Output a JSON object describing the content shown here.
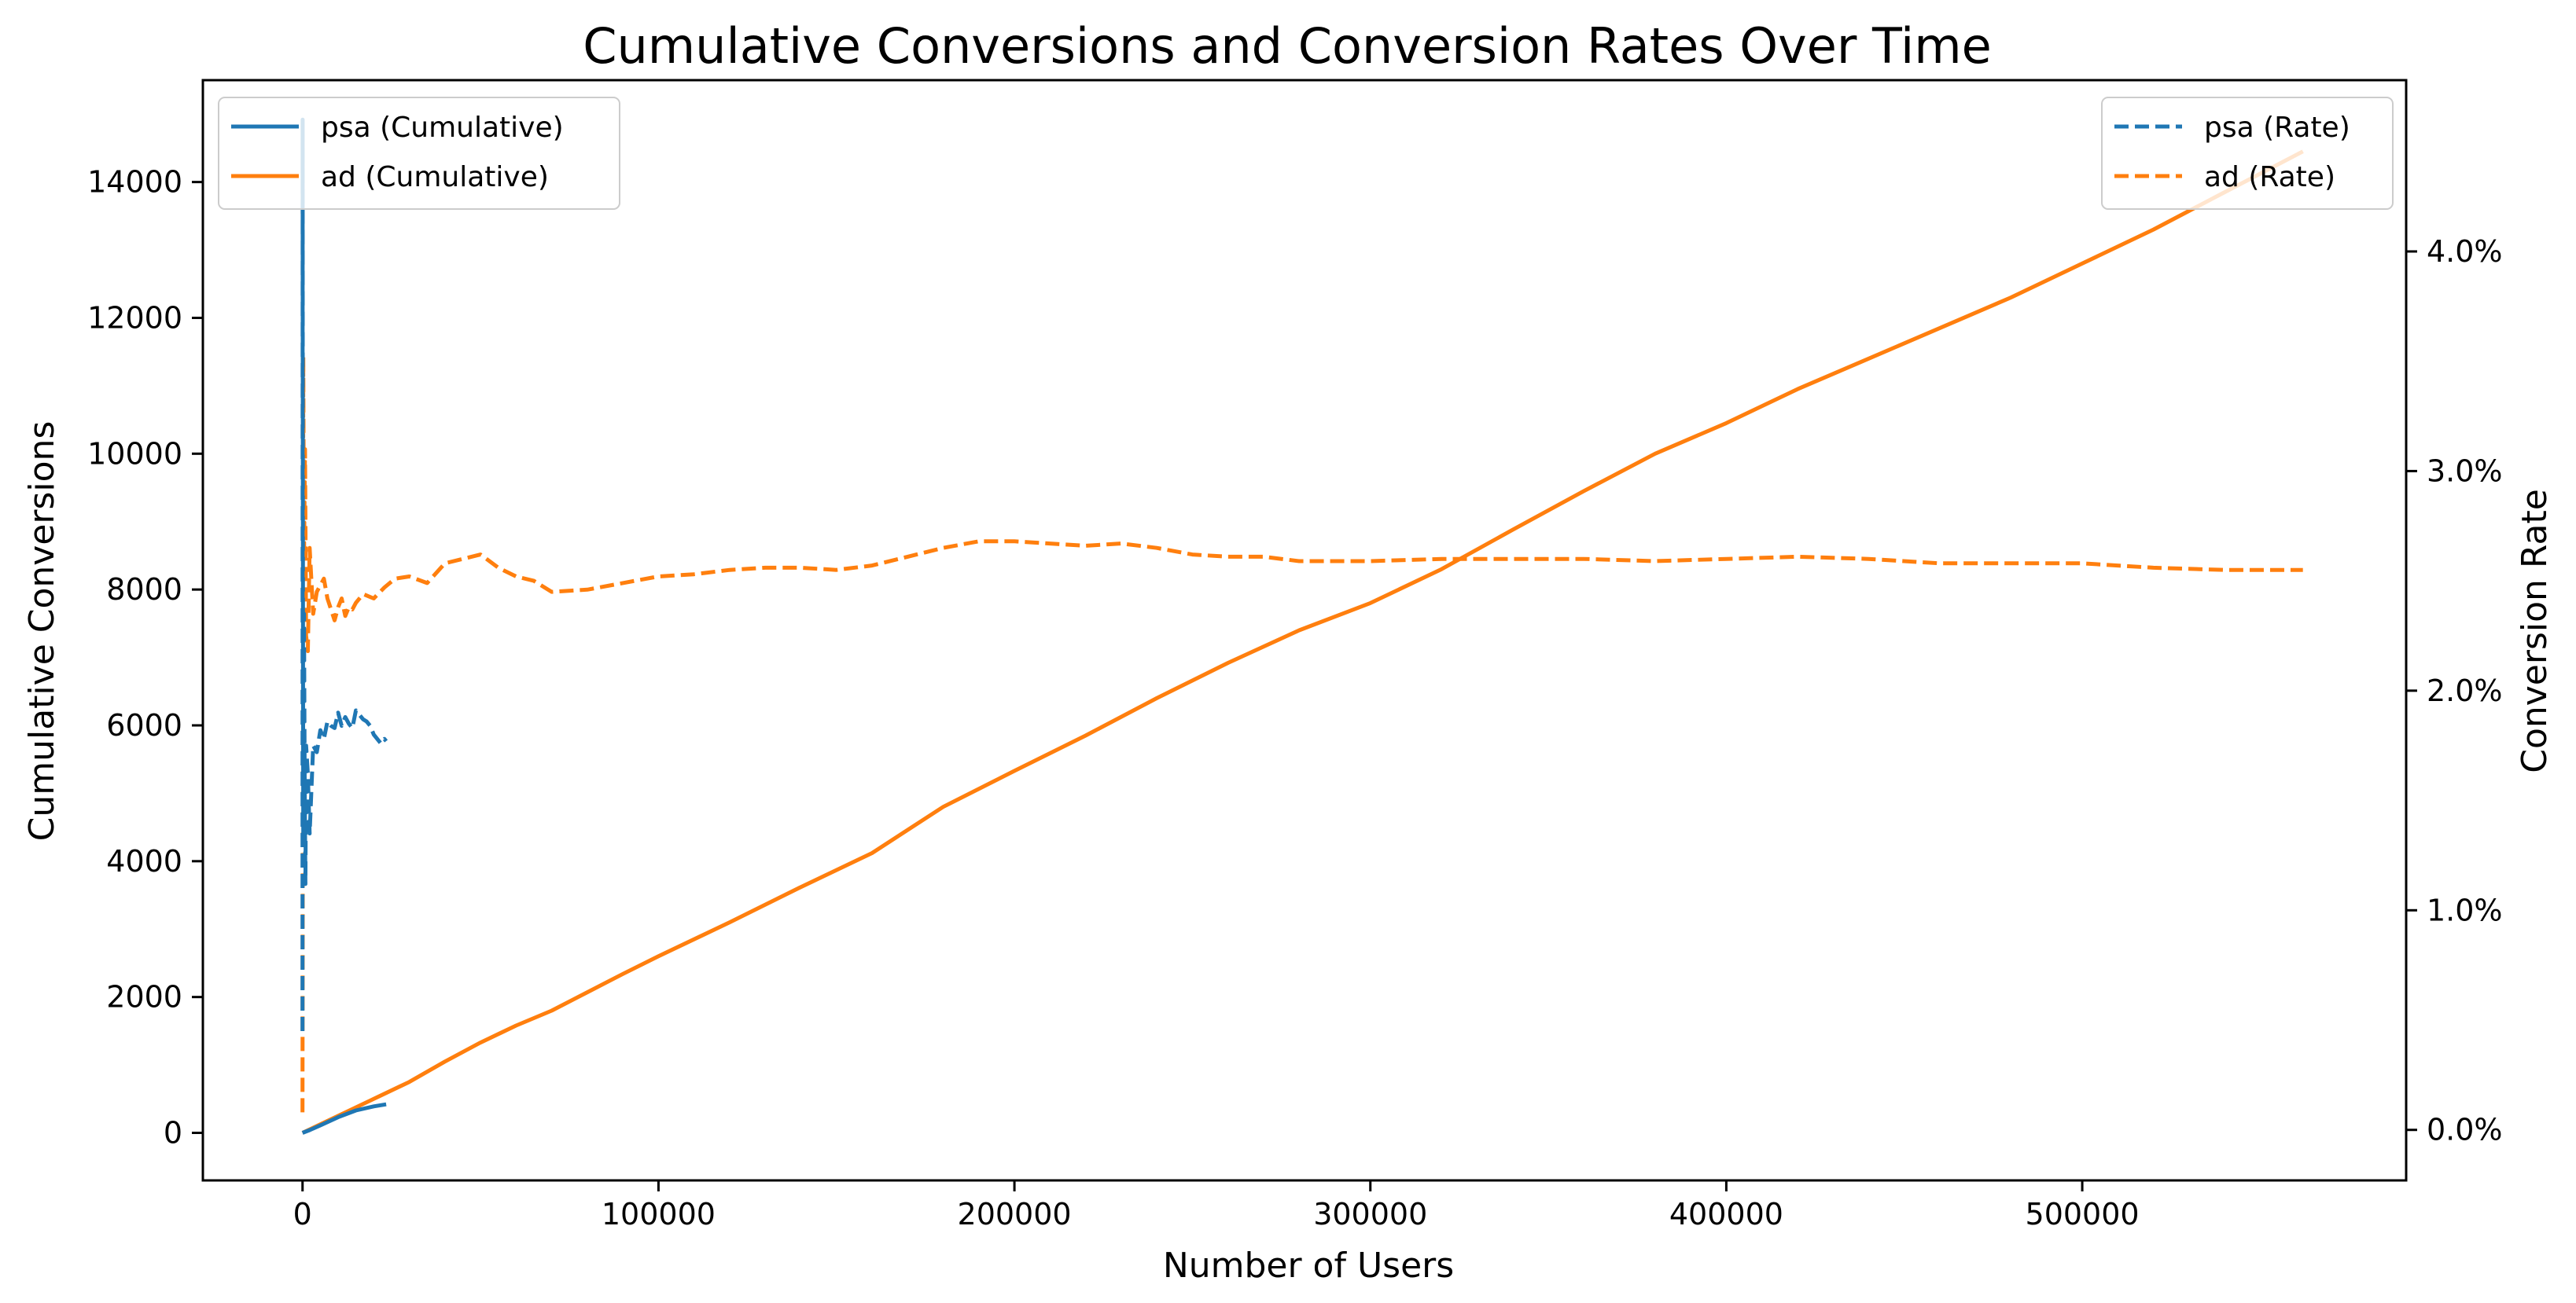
{
  "chart_data": {
    "type": "line",
    "title": "Cumulative Conversions and Conversion Rates Over Time",
    "xlabel": "Number of Users",
    "ylabel_left": "Cumulative Conversions",
    "ylabel_right": "Conversion Rate",
    "xlim": [
      -28000,
      591000
    ],
    "ylim_left": [
      -700,
      15500
    ],
    "ylim_right": [
      -0.0023,
      0.0478
    ],
    "x_ticks": [
      0,
      100000,
      200000,
      300000,
      400000,
      500000
    ],
    "x_tick_labels": [
      "0",
      "100000",
      "200000",
      "300000",
      "400000",
      "500000"
    ],
    "y_left_ticks": [
      0,
      2000,
      4000,
      6000,
      8000,
      10000,
      12000,
      14000
    ],
    "y_left_tick_labels": [
      "0",
      "2000",
      "4000",
      "6000",
      "8000",
      "10000",
      "12000",
      "14000"
    ],
    "y_right_ticks": [
      0,
      0.01,
      0.02,
      0.03,
      0.04
    ],
    "y_right_tick_labels": [
      "0.0%",
      "1.0%",
      "2.0%",
      "3.0%",
      "4.0%"
    ],
    "grid": false,
    "legend_left": {
      "placement": "top-left",
      "entries": [
        "psa (Cumulative)",
        "ad (Cumulative)"
      ]
    },
    "legend_right": {
      "placement": "top-right",
      "entries": [
        "psa (Rate)",
        "ad (Rate)"
      ]
    },
    "colors": {
      "psa": "#1f77b4",
      "ad": "#ff7f0e"
    },
    "series": [
      {
        "name": "psa (Cumulative)",
        "axis": "left",
        "style": "solid",
        "x": [
          0,
          2000,
          5000,
          10000,
          15000,
          20000,
          23500
        ],
        "y": [
          0,
          40,
          110,
          230,
          330,
          390,
          420
        ]
      },
      {
        "name": "ad (Cumulative)",
        "axis": "left",
        "style": "solid",
        "x": [
          0,
          10000,
          20000,
          30000,
          40000,
          50000,
          60000,
          70000,
          80000,
          90000,
          100000,
          120000,
          140000,
          160000,
          180000,
          200000,
          220000,
          240000,
          260000,
          280000,
          300000,
          320000,
          340000,
          360000,
          380000,
          400000,
          420000,
          440000,
          460000,
          480000,
          500000,
          520000,
          540000,
          562000
        ],
        "y": [
          0,
          250,
          500,
          750,
          1050,
          1330,
          1580,
          1800,
          2070,
          2340,
          2600,
          3100,
          3620,
          4120,
          4800,
          5330,
          5850,
          6400,
          6920,
          7400,
          7800,
          8300,
          8880,
          9450,
          10000,
          10450,
          10950,
          11400,
          11850,
          12300,
          12800,
          13300,
          13850,
          14450
        ]
      },
      {
        "name": "psa (Rate)",
        "axis": "right",
        "style": "dashed",
        "x": [
          0,
          30,
          60,
          100,
          150,
          200,
          300,
          400,
          600,
          800,
          1000,
          1500,
          2000,
          3000,
          4000,
          5000,
          6000,
          7000,
          8000,
          9000,
          10000,
          11000,
          12000,
          13000,
          14000,
          15000,
          16000,
          17000,
          18000,
          19000,
          20000,
          21000,
          22000,
          23000,
          23500
        ],
        "y": [
          0.0045,
          0.046,
          0.036,
          0.028,
          0.0205,
          0.013,
          0.017,
          0.0235,
          0.0158,
          0.0112,
          0.0175,
          0.0162,
          0.0135,
          0.0175,
          0.0172,
          0.0182,
          0.0178,
          0.0186,
          0.0184,
          0.0183,
          0.019,
          0.0184,
          0.0188,
          0.0185,
          0.0183,
          0.0191,
          0.0189,
          0.0187,
          0.0186,
          0.0184,
          0.018,
          0.0178,
          0.0176,
          0.0178,
          0.0177
        ]
      },
      {
        "name": "ad (Rate)",
        "axis": "right",
        "style": "dashed",
        "x": [
          0,
          200,
          400,
          700,
          1000,
          1500,
          2000,
          3000,
          4000,
          5000,
          6000,
          7000,
          8000,
          9000,
          10000,
          11000,
          12000,
          13000,
          14000,
          15000,
          17000,
          20000,
          23000,
          26000,
          30000,
          35000,
          40000,
          45000,
          50000,
          55000,
          60000,
          65000,
          70000,
          80000,
          90000,
          100000,
          110000,
          120000,
          130000,
          140000,
          150000,
          160000,
          170000,
          180000,
          190000,
          200000,
          210000,
          220000,
          230000,
          240000,
          250000,
          260000,
          270000,
          280000,
          290000,
          300000,
          320000,
          340000,
          360000,
          380000,
          400000,
          420000,
          440000,
          460000,
          480000,
          500000,
          520000,
          540000,
          562000
        ],
        "y": [
          0.0008,
          0.0352,
          0.026,
          0.031,
          0.0225,
          0.0218,
          0.0265,
          0.0235,
          0.0245,
          0.0248,
          0.0251,
          0.0242,
          0.0237,
          0.0232,
          0.0238,
          0.0242,
          0.0234,
          0.0238,
          0.0237,
          0.024,
          0.0244,
          0.0242,
          0.0247,
          0.0251,
          0.0252,
          0.0249,
          0.0258,
          0.026,
          0.0262,
          0.0256,
          0.0252,
          0.025,
          0.0245,
          0.0246,
          0.0249,
          0.0252,
          0.0253,
          0.0255,
          0.0256,
          0.0256,
          0.0255,
          0.0257,
          0.0261,
          0.0265,
          0.0268,
          0.0268,
          0.0267,
          0.0266,
          0.0267,
          0.0265,
          0.0262,
          0.0261,
          0.0261,
          0.0259,
          0.0259,
          0.0259,
          0.026,
          0.026,
          0.026,
          0.0259,
          0.026,
          0.0261,
          0.026,
          0.0258,
          0.0258,
          0.0258,
          0.0256,
          0.0255,
          0.0255
        ]
      }
    ]
  }
}
